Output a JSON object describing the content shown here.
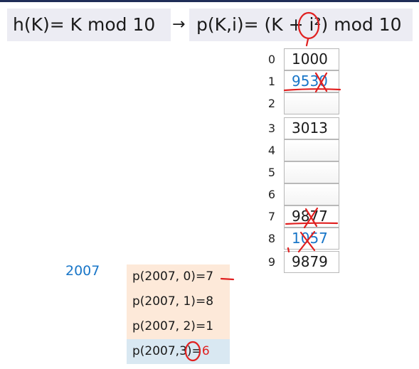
{
  "hash_function": {
    "text": "h(K)= K mod 10"
  },
  "arrow": {
    "glyph": "→"
  },
  "probe_function": {
    "prefix": "p(K,i)= (K + ",
    "term": "i²",
    "suffix": ") mod 10"
  },
  "table": {
    "slots": [
      {
        "index": "0",
        "value": "1000",
        "color": "#1a1a1a"
      },
      {
        "index": "1",
        "value": "9530",
        "color": "#1976c8"
      },
      {
        "index": "2",
        "value": ""
      },
      {
        "index": "3",
        "value": "3013",
        "color": "#1a1a1a"
      },
      {
        "index": "4",
        "value": ""
      },
      {
        "index": "5",
        "value": ""
      },
      {
        "index": "6",
        "value": ""
      },
      {
        "index": "7",
        "value": "9877",
        "color": "#1a1a1a"
      },
      {
        "index": "8",
        "value": "1057",
        "color": "#1976c8"
      },
      {
        "index": "9",
        "value": "9879",
        "color": "#1a1a1a"
      }
    ]
  },
  "key": {
    "value": "2007",
    "color": "#1976c8"
  },
  "probes": [
    {
      "label": "p(2007, 0)=",
      "result": "7",
      "bg": "#fde9d9"
    },
    {
      "label": "p(2007, 1)=",
      "result": "8",
      "bg": "#fde9d9"
    },
    {
      "label": "p(2007, 2)=",
      "result": "1",
      "bg": "#fde9d9"
    },
    {
      "label_a": "p(2007,",
      "circled": "3",
      "label_b": ")=",
      "result": "6",
      "bg": "#d9e8f2"
    }
  ],
  "colors": {
    "annotation": "#e02020",
    "accent_blue": "#1976c8",
    "header_bar": "#1f2d57"
  }
}
